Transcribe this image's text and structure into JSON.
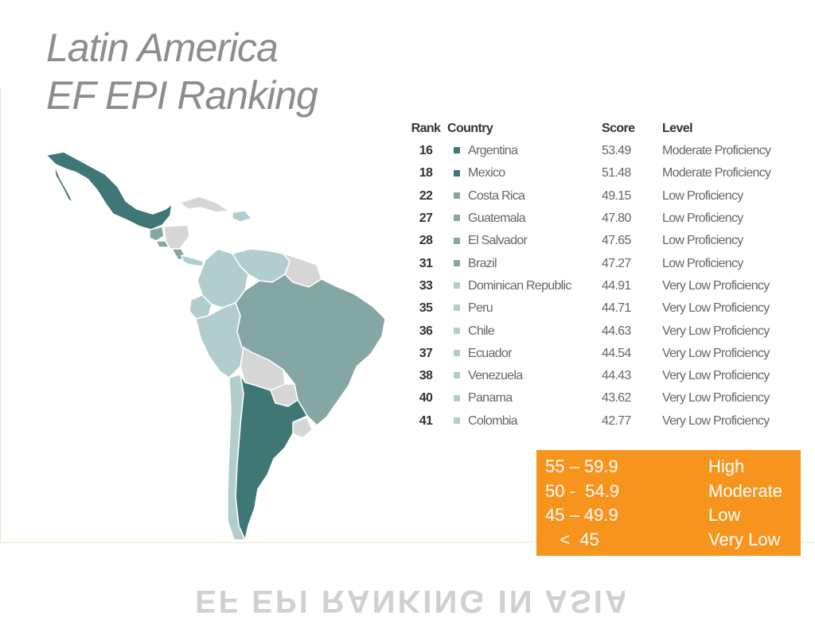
{
  "title": {
    "line1": "Latin America",
    "line2": "EF EPI Ranking"
  },
  "table": {
    "headers": {
      "rank": "Rank",
      "country": "Country",
      "score": "Score",
      "level": "Level"
    },
    "rows": [
      {
        "rank": "16",
        "country": "Argentina",
        "score": "53.49",
        "level": "Moderate Proficiency",
        "color": "#3e7776"
      },
      {
        "rank": "18",
        "country": "Mexico",
        "score": "51.48",
        "level": "Moderate Proficiency",
        "color": "#3e7776"
      },
      {
        "rank": "22",
        "country": "Costa Rica",
        "score": "49.15",
        "level": "Low Proficiency",
        "color": "#84a7a4"
      },
      {
        "rank": "27",
        "country": "Guatemala",
        "score": "47.80",
        "level": "Low Proficiency",
        "color": "#84a7a4"
      },
      {
        "rank": "28",
        "country": "El Salvador",
        "score": "47.65",
        "level": "Low Proficiency",
        "color": "#84a7a4"
      },
      {
        "rank": "31",
        "country": "Brazil",
        "score": "47.27",
        "level": "Low Proficiency",
        "color": "#84a7a4"
      },
      {
        "rank": "33",
        "country": "Dominican Republic",
        "score": "44.91",
        "level": "Very Low Proficiency",
        "color": "#b2cdcd"
      },
      {
        "rank": "35",
        "country": "Peru",
        "score": "44.71",
        "level": "Very Low Proficiency",
        "color": "#b2cdcd"
      },
      {
        "rank": "36",
        "country": "Chile",
        "score": "44.63",
        "level": "Very Low Proficiency",
        "color": "#b2cdcd"
      },
      {
        "rank": "37",
        "country": "Ecuador",
        "score": "44.54",
        "level": "Very Low Proficiency",
        "color": "#b2cdcd"
      },
      {
        "rank": "38",
        "country": "Venezuela",
        "score": "44.43",
        "level": "Very Low Proficiency",
        "color": "#b2cdcd"
      },
      {
        "rank": "40",
        "country": "Panama",
        "score": "43.62",
        "level": "Very Low Proficiency",
        "color": "#b2cdcd"
      },
      {
        "rank": "41",
        "country": "Colombia",
        "score": "42.77",
        "level": "Very Low Proficiency",
        "color": "#b2cdcd"
      }
    ]
  },
  "legend": {
    "background": "#f7941d",
    "rows": [
      {
        "range": "55 – 59.9",
        "level": "High"
      },
      {
        "range": "50 -  54.9",
        "level": "Moderate"
      },
      {
        "range": "45 – 49.9",
        "level": "Low"
      },
      {
        "range": "   <  45",
        "level": "Very Low"
      }
    ]
  },
  "map": {
    "colors": {
      "moderate": "#3e7776",
      "low": "#84a7a4",
      "very_low": "#b2cdcd",
      "no_data": "#d6d6d6"
    }
  },
  "reflection_text": "EF EPI RANKING IN ASIA"
}
